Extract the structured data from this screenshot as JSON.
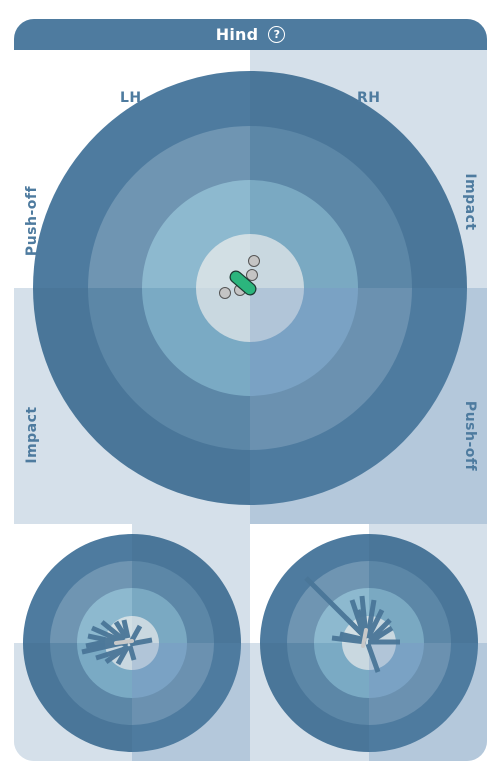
{
  "header": {
    "title": "Hind",
    "help_label": "?"
  },
  "labels": {
    "left_hind": "LH",
    "right_hind": "RH",
    "top_left": "Push-off",
    "top_right": "Impact",
    "bottom_left": "Impact",
    "bottom_right": "Push-off"
  },
  "colors": {
    "accent": "#4e7b9f",
    "highlight": "#2bb57d"
  },
  "icons": {
    "help": "question-circle-icon"
  }
}
